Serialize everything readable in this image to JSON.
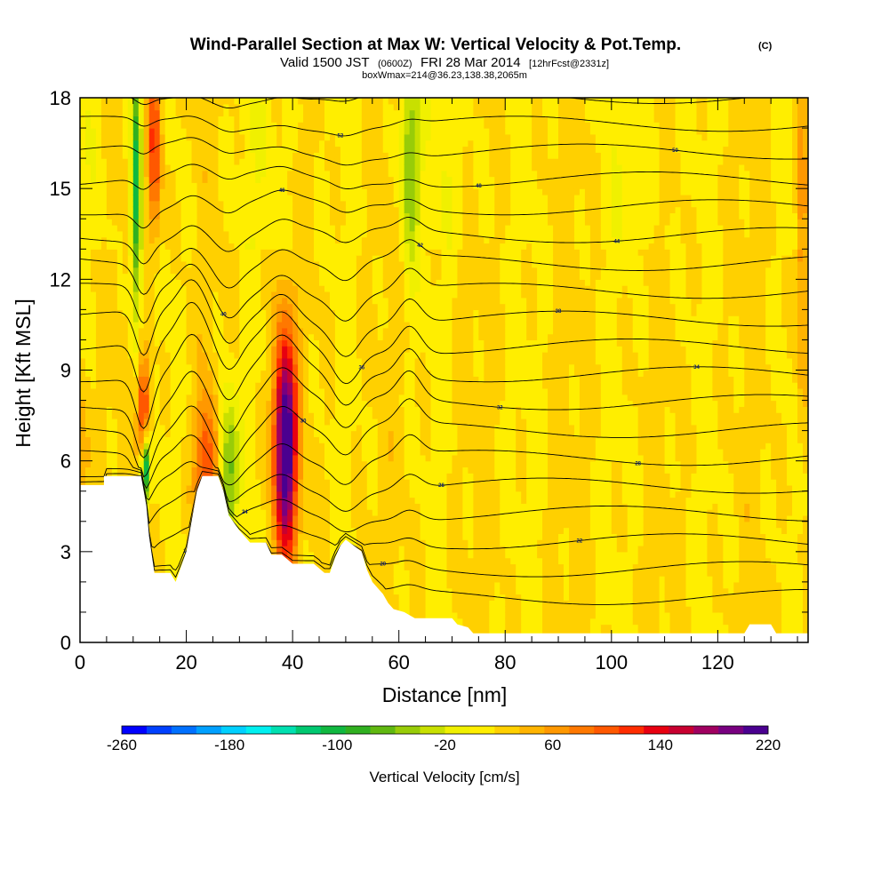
{
  "title": {
    "main": "Wind-Parallel Section at Max W: Vertical Velocity & Pot.Temp.",
    "main_suffix": "(C)",
    "valid_prefix": "Valid 1500 JST",
    "valid_zulu": "(0600Z)",
    "valid_date": "FRI 28 Mar 2014",
    "valid_fcst": "[12hrFcst@2331z]",
    "boxw": "boxWmax=214@36.23,138.38,2065m"
  },
  "chart_data": {
    "type": "heatmap",
    "xlabel": "Distance [nm]",
    "ylabel": "Height [Kft MSL]",
    "xlim": [
      0,
      137
    ],
    "ylim": [
      0,
      18
    ],
    "x_ticks": [
      "0",
      "20",
      "40",
      "60",
      "80",
      "100",
      "120"
    ],
    "y_ticks": [
      "0",
      "3",
      "6",
      "9",
      "12",
      "15",
      "18"
    ],
    "x_tick_values": [
      0,
      20,
      40,
      60,
      80,
      100,
      120
    ],
    "y_tick_values": [
      0,
      3,
      6,
      9,
      12,
      15,
      18
    ],
    "colorbar": {
      "label": "Vertical Velocity [cm/s]",
      "range": [
        -260,
        220
      ],
      "tick_labels": [
        "-260",
        "-180",
        "-100",
        "-20",
        "60",
        "140",
        "220"
      ],
      "tick_values": [
        -260,
        -180,
        -100,
        -20,
        60,
        140,
        220
      ],
      "colors": [
        "#0000ff",
        "#0040ff",
        "#0070ff",
        "#00a0ff",
        "#00d0ff",
        "#00f0f0",
        "#00e0b0",
        "#00c870",
        "#10b840",
        "#30b020",
        "#60b810",
        "#98cc08",
        "#c8e000",
        "#f0f000",
        "#ffee00",
        "#ffd000",
        "#ffb400",
        "#ff9800",
        "#ff7800",
        "#ff5800",
        "#ff2c00",
        "#e80010",
        "#c80030",
        "#a00060",
        "#780080",
        "#4a0090"
      ]
    },
    "terrain_kft": [
      [
        0,
        5.2
      ],
      [
        0.5,
        5.2
      ],
      [
        4.5,
        5.2
      ],
      [
        4.5,
        5.5
      ],
      [
        11.5,
        5.5
      ],
      [
        12.5,
        4.5
      ],
      [
        13,
        3.5
      ],
      [
        14,
        2.3
      ],
      [
        17,
        2.3
      ],
      [
        18,
        2.0
      ],
      [
        19,
        2.5
      ],
      [
        20,
        3.0
      ],
      [
        21,
        4.0
      ],
      [
        22,
        5.0
      ],
      [
        23,
        5.5
      ],
      [
        26,
        5.5
      ],
      [
        27,
        5.0
      ],
      [
        28,
        4.2
      ],
      [
        30,
        3.7
      ],
      [
        31,
        3.5
      ],
      [
        32,
        3.3
      ],
      [
        35,
        3.3
      ],
      [
        36,
        2.9
      ],
      [
        38,
        2.9
      ],
      [
        40,
        2.6
      ],
      [
        44,
        2.6
      ],
      [
        46,
        2.3
      ],
      [
        47,
        2.3
      ],
      [
        48,
        2.8
      ],
      [
        49,
        3.2
      ],
      [
        50,
        3.4
      ],
      [
        53,
        3.0
      ],
      [
        54,
        2.4
      ],
      [
        55,
        2.0
      ],
      [
        56,
        1.8
      ],
      [
        57,
        1.6
      ],
      [
        58,
        1.3
      ],
      [
        59,
        1.1
      ],
      [
        61,
        1.0
      ],
      [
        63,
        0.8
      ],
      [
        70,
        0.8
      ],
      [
        71,
        0.6
      ],
      [
        73,
        0.5
      ],
      [
        74,
        0.3
      ],
      [
        79,
        0.3
      ],
      [
        83,
        0.3
      ],
      [
        89,
        0.3
      ],
      [
        125,
        0.3
      ],
      [
        126,
        0.6
      ],
      [
        130,
        0.6
      ],
      [
        131,
        0.3
      ],
      [
        137,
        0.3
      ]
    ],
    "w_features": [
      {
        "x": 38.6,
        "y": 6.5,
        "sx": 1.5,
        "sy": 2.6,
        "w": 225
      },
      {
        "x": 12.0,
        "y": 7.6,
        "sx": 0.75,
        "sy": 1.4,
        "w": 120
      },
      {
        "x": 14.0,
        "y": 16.5,
        "sx": 0.9,
        "sy": 2.2,
        "w": 110
      },
      {
        "x": 10.6,
        "y": 15.0,
        "sx": 0.7,
        "sy": 3.0,
        "w": -130
      },
      {
        "x": 12.2,
        "y": 5.8,
        "sx": 0.5,
        "sy": 0.8,
        "w": -190
      },
      {
        "x": 23.8,
        "y": 5.8,
        "sx": 1.5,
        "sy": 1.6,
        "w": 90
      },
      {
        "x": 28.0,
        "y": 5.6,
        "sx": 1.2,
        "sy": 1.8,
        "w": -90
      },
      {
        "x": 62.0,
        "y": 16.0,
        "sx": 1.2,
        "sy": 2.5,
        "w": -80
      },
      {
        "x": 136.0,
        "y": 14.0,
        "sx": 0.8,
        "sy": 5.0,
        "w": 60
      },
      {
        "x": 0.5,
        "y": 6.0,
        "sx": 0.8,
        "sy": 2.0,
        "w": 40
      }
    ],
    "contour_levels_C": [
      "18",
      "20",
      "22",
      "24",
      "26",
      "28",
      "30",
      "32",
      "34",
      "36",
      "38",
      "40",
      "42",
      "44",
      "46",
      "48",
      "50",
      "52",
      "54",
      "56"
    ]
  }
}
